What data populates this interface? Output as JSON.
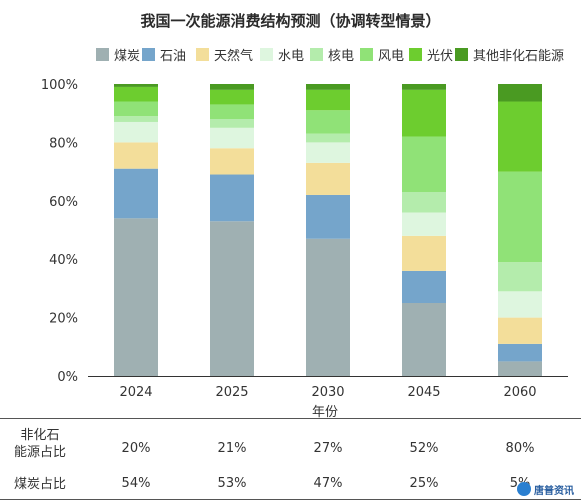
{
  "title": "我国一次能源消费结构预测（协调转型情景）",
  "chart_data": {
    "type": "bar",
    "stacked": true,
    "categories": [
      "2024",
      "2025",
      "2030",
      "2045",
      "2060"
    ],
    "xlabel": "年份",
    "ylabel": "",
    "ylim": [
      0,
      100
    ],
    "yticks": [
      "0%",
      "20%",
      "40%",
      "60%",
      "80%",
      "100%"
    ],
    "series": [
      {
        "name": "煤炭",
        "color": "#9fb0b2",
        "values": [
          54,
          53,
          47,
          25,
          5
        ]
      },
      {
        "name": "石油",
        "color": "#75a5cb",
        "values": [
          17,
          16,
          15,
          11,
          6
        ]
      },
      {
        "name": "天然气",
        "color": "#f3de9a",
        "values": [
          9,
          9,
          11,
          12,
          9
        ]
      },
      {
        "name": "水电",
        "color": "#def6df",
        "values": [
          7,
          7,
          7,
          8,
          9
        ]
      },
      {
        "name": "核电",
        "color": "#b4ecac",
        "values": [
          2,
          3,
          3,
          7,
          10
        ]
      },
      {
        "name": "风电",
        "color": "#90e277",
        "values": [
          5,
          5,
          8,
          19,
          31
        ]
      },
      {
        "name": "光伏",
        "color": "#6dcd2f",
        "values": [
          5,
          5,
          7,
          16,
          24
        ]
      },
      {
        "name": "其他非化石能源",
        "color": "#4a9a22",
        "values": [
          1,
          2,
          2,
          2,
          6
        ]
      }
    ]
  },
  "table": {
    "rows": [
      {
        "label": "非化石\n能源占比",
        "values": [
          "20%",
          "21%",
          "27%",
          "52%",
          "80%"
        ]
      },
      {
        "label": "煤炭占比",
        "values": [
          "54%",
          "53%",
          "47%",
          "25%",
          "5%"
        ]
      }
    ]
  },
  "watermark": "唐普资讯"
}
